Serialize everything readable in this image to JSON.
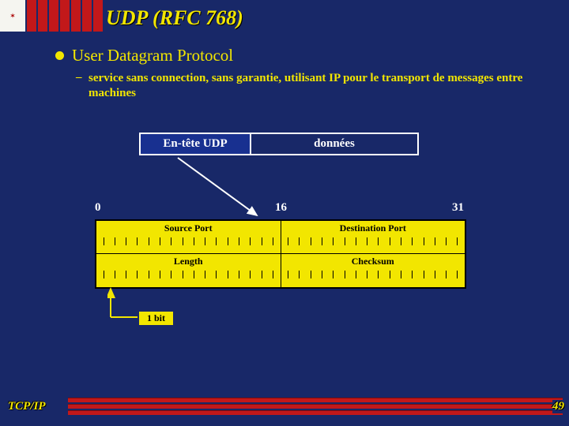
{
  "title": "UDP (RFC 768)",
  "bullet": "User Datagram Protocol",
  "sub": "service sans connection, sans garantie, utilisant IP pour le transport de messages entre machines",
  "packet": {
    "header": "En-tête UDP",
    "data": "données"
  },
  "bits": {
    "b0": "0",
    "b16": "16",
    "b31": "31"
  },
  "fields": {
    "src": "Source Port",
    "dst": "Destination Port",
    "len": "Length",
    "chk": "Checksum"
  },
  "bit_label": "1 bit",
  "footer": {
    "left": "TCP/IP",
    "page": "49"
  },
  "colors": {
    "bg": "#182868",
    "accent": "#f2e600",
    "red": "#c2181a",
    "boxfill": "#183090"
  },
  "ticks_per_field": 16
}
